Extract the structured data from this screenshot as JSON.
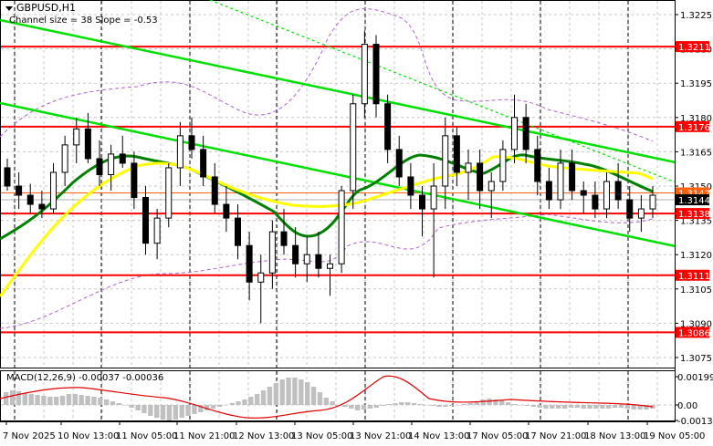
{
  "header": {
    "symbol_timeframe": "GBPUSD,H1",
    "indicator_label": "Channel size = 38 Slope = -0.53"
  },
  "macd": {
    "label": "MACD(12,26,9) -0.00037 -0.00036",
    "axis_ticks": [
      {
        "value": "0.00199",
        "y": 413
      },
      {
        "value": "0.00",
        "y": 444
      },
      {
        "value": "-0.00134",
        "y": 461
      }
    ]
  },
  "colors": {
    "support_resistance": "#ff0000",
    "channel": "#00e000",
    "ma_fast": "#008000",
    "ma_slow": "#ffff00",
    "envelope": "#b060d0",
    "bid_tag": "#000000",
    "ask_tag": "#ff6010",
    "macd_hist": "#c0c0c0",
    "macd_signal": "#e00000"
  },
  "chart_data": {
    "type": "candlestick",
    "title": "GBPUSD,H1",
    "subtitle": "Channel size = 38 Slope = -0.53",
    "ylim": [
      1.307,
      1.3232
    ],
    "price_ticks": [
      "1.3225",
      "1.3210",
      "1.3195",
      "1.3180",
      "1.3165",
      "1.3150",
      "1.3135",
      "1.3120",
      "1.3105",
      "1.3090",
      "1.3075"
    ],
    "horizontal_levels": [
      {
        "label": "1.3211",
        "value": 1.3211
      },
      {
        "label": "1.3176",
        "value": 1.3176
      },
      {
        "label": "1.3138",
        "value": 1.3138
      },
      {
        "label": "1.3111",
        "value": 1.3111
      },
      {
        "label": "1.3086",
        "value": 1.3086
      }
    ],
    "current_price": {
      "bid": "1.3144",
      "ask": "1.3147"
    },
    "x_tick_labels": [
      "7 Nov 2025",
      "10 Nov 13:00",
      "11 Nov 05:00",
      "11 Nov 21:00",
      "12 Nov 13:00",
      "13 Nov 05:00",
      "13 Nov 21:00",
      "14 Nov 13:00",
      "17 Nov 05:00",
      "17 Nov 21:00",
      "18 Nov 13:00",
      "19 Nov 05:00"
    ],
    "series": [
      {
        "name": "Regression channel upper",
        "type": "line",
        "points": [
          [
            0,
            22
          ],
          [
            740,
            178
          ]
        ]
      },
      {
        "name": "Regression channel lower",
        "type": "line",
        "points": [
          [
            0,
            113
          ],
          [
            740,
            270
          ]
        ]
      },
      {
        "name": "Regression channel mid (dashed)",
        "type": "line",
        "points": [
          [
            230,
            0
          ],
          [
            740,
            200
          ]
        ]
      },
      {
        "name": "MA fast (green)",
        "type": "line"
      },
      {
        "name": "MA slow (yellow)",
        "type": "line"
      },
      {
        "name": "Envelope (purple dashed)",
        "type": "line"
      },
      {
        "name": "MACD histogram",
        "type": "bar"
      },
      {
        "name": "MACD signal",
        "type": "line"
      }
    ],
    "candles_approx": [
      [
        1.3158,
        1.3162,
        1.3148,
        1.315
      ],
      [
        1.315,
        1.3156,
        1.314,
        1.3146
      ],
      [
        1.3146,
        1.3151,
        1.3138,
        1.3142
      ],
      [
        1.3142,
        1.3148,
        1.3136,
        1.314
      ],
      [
        1.314,
        1.316,
        1.3138,
        1.3156
      ],
      [
        1.3156,
        1.3172,
        1.315,
        1.3168
      ],
      [
        1.3168,
        1.318,
        1.316,
        1.3175
      ],
      [
        1.3175,
        1.3182,
        1.316,
        1.3162
      ],
      [
        1.3162,
        1.317,
        1.315,
        1.3155
      ],
      [
        1.3155,
        1.3168,
        1.3148,
        1.3164
      ],
      [
        1.3164,
        1.3172,
        1.3158,
        1.316
      ],
      [
        1.316,
        1.3165,
        1.314,
        1.3145
      ],
      [
        1.3145,
        1.315,
        1.312,
        1.3125
      ],
      [
        1.3125,
        1.314,
        1.3118,
        1.3136
      ],
      [
        1.3136,
        1.316,
        1.3132,
        1.3158
      ],
      [
        1.3158,
        1.3178,
        1.315,
        1.3172
      ],
      [
        1.3172,
        1.318,
        1.3162,
        1.3166
      ],
      [
        1.3166,
        1.3172,
        1.315,
        1.3154
      ],
      [
        1.3154,
        1.316,
        1.3138,
        1.3142
      ],
      [
        1.3142,
        1.315,
        1.313,
        1.3136
      ],
      [
        1.3136,
        1.3142,
        1.3118,
        1.3124
      ],
      [
        1.3124,
        1.313,
        1.31,
        1.3108
      ],
      [
        1.3108,
        1.312,
        1.309,
        1.3112
      ],
      [
        1.3112,
        1.3135,
        1.3105,
        1.313
      ],
      [
        1.313,
        1.314,
        1.312,
        1.3124
      ],
      [
        1.3124,
        1.3132,
        1.311,
        1.3116
      ],
      [
        1.3116,
        1.3128,
        1.3108,
        1.312
      ],
      [
        1.312,
        1.313,
        1.311,
        1.3114
      ],
      [
        1.3114,
        1.312,
        1.3102,
        1.3116
      ],
      [
        1.3116,
        1.315,
        1.3112,
        1.3148
      ],
      [
        1.3148,
        1.319,
        1.314,
        1.3186
      ],
      [
        1.3186,
        1.3218,
        1.318,
        1.3212
      ],
      [
        1.3212,
        1.3216,
        1.318,
        1.3186
      ],
      [
        1.3186,
        1.319,
        1.316,
        1.3166
      ],
      [
        1.3166,
        1.3172,
        1.315,
        1.3154
      ],
      [
        1.3154,
        1.316,
        1.314,
        1.3146
      ],
      [
        1.3146,
        1.315,
        1.3128,
        1.314
      ],
      [
        1.314,
        1.316,
        1.311,
        1.315
      ],
      [
        1.315,
        1.318,
        1.314,
        1.3172
      ],
      [
        1.3172,
        1.3176,
        1.315,
        1.3156
      ],
      [
        1.3156,
        1.3166,
        1.3144,
        1.316
      ],
      [
        1.316,
        1.3166,
        1.314,
        1.3148
      ],
      [
        1.3148,
        1.3156,
        1.3136,
        1.3152
      ],
      [
        1.3152,
        1.317,
        1.3148,
        1.3166
      ],
      [
        1.3166,
        1.319,
        1.316,
        1.318
      ],
      [
        1.318,
        1.3186,
        1.316,
        1.3166
      ],
      [
        1.3166,
        1.3172,
        1.3146,
        1.3152
      ],
      [
        1.3152,
        1.3158,
        1.314,
        1.3144
      ],
      [
        1.3144,
        1.3166,
        1.314,
        1.316
      ],
      [
        1.316,
        1.3166,
        1.3144,
        1.3148
      ],
      [
        1.3148,
        1.3152,
        1.3138,
        1.3146
      ],
      [
        1.3146,
        1.3152,
        1.3136,
        1.314
      ],
      [
        1.314,
        1.3156,
        1.3136,
        1.3152
      ],
      [
        1.3152,
        1.316,
        1.314,
        1.3144
      ],
      [
        1.3144,
        1.315,
        1.313,
        1.3136
      ],
      [
        1.3136,
        1.3146,
        1.313,
        1.314
      ],
      [
        1.314,
        1.315,
        1.3136,
        1.3146
      ]
    ]
  }
}
